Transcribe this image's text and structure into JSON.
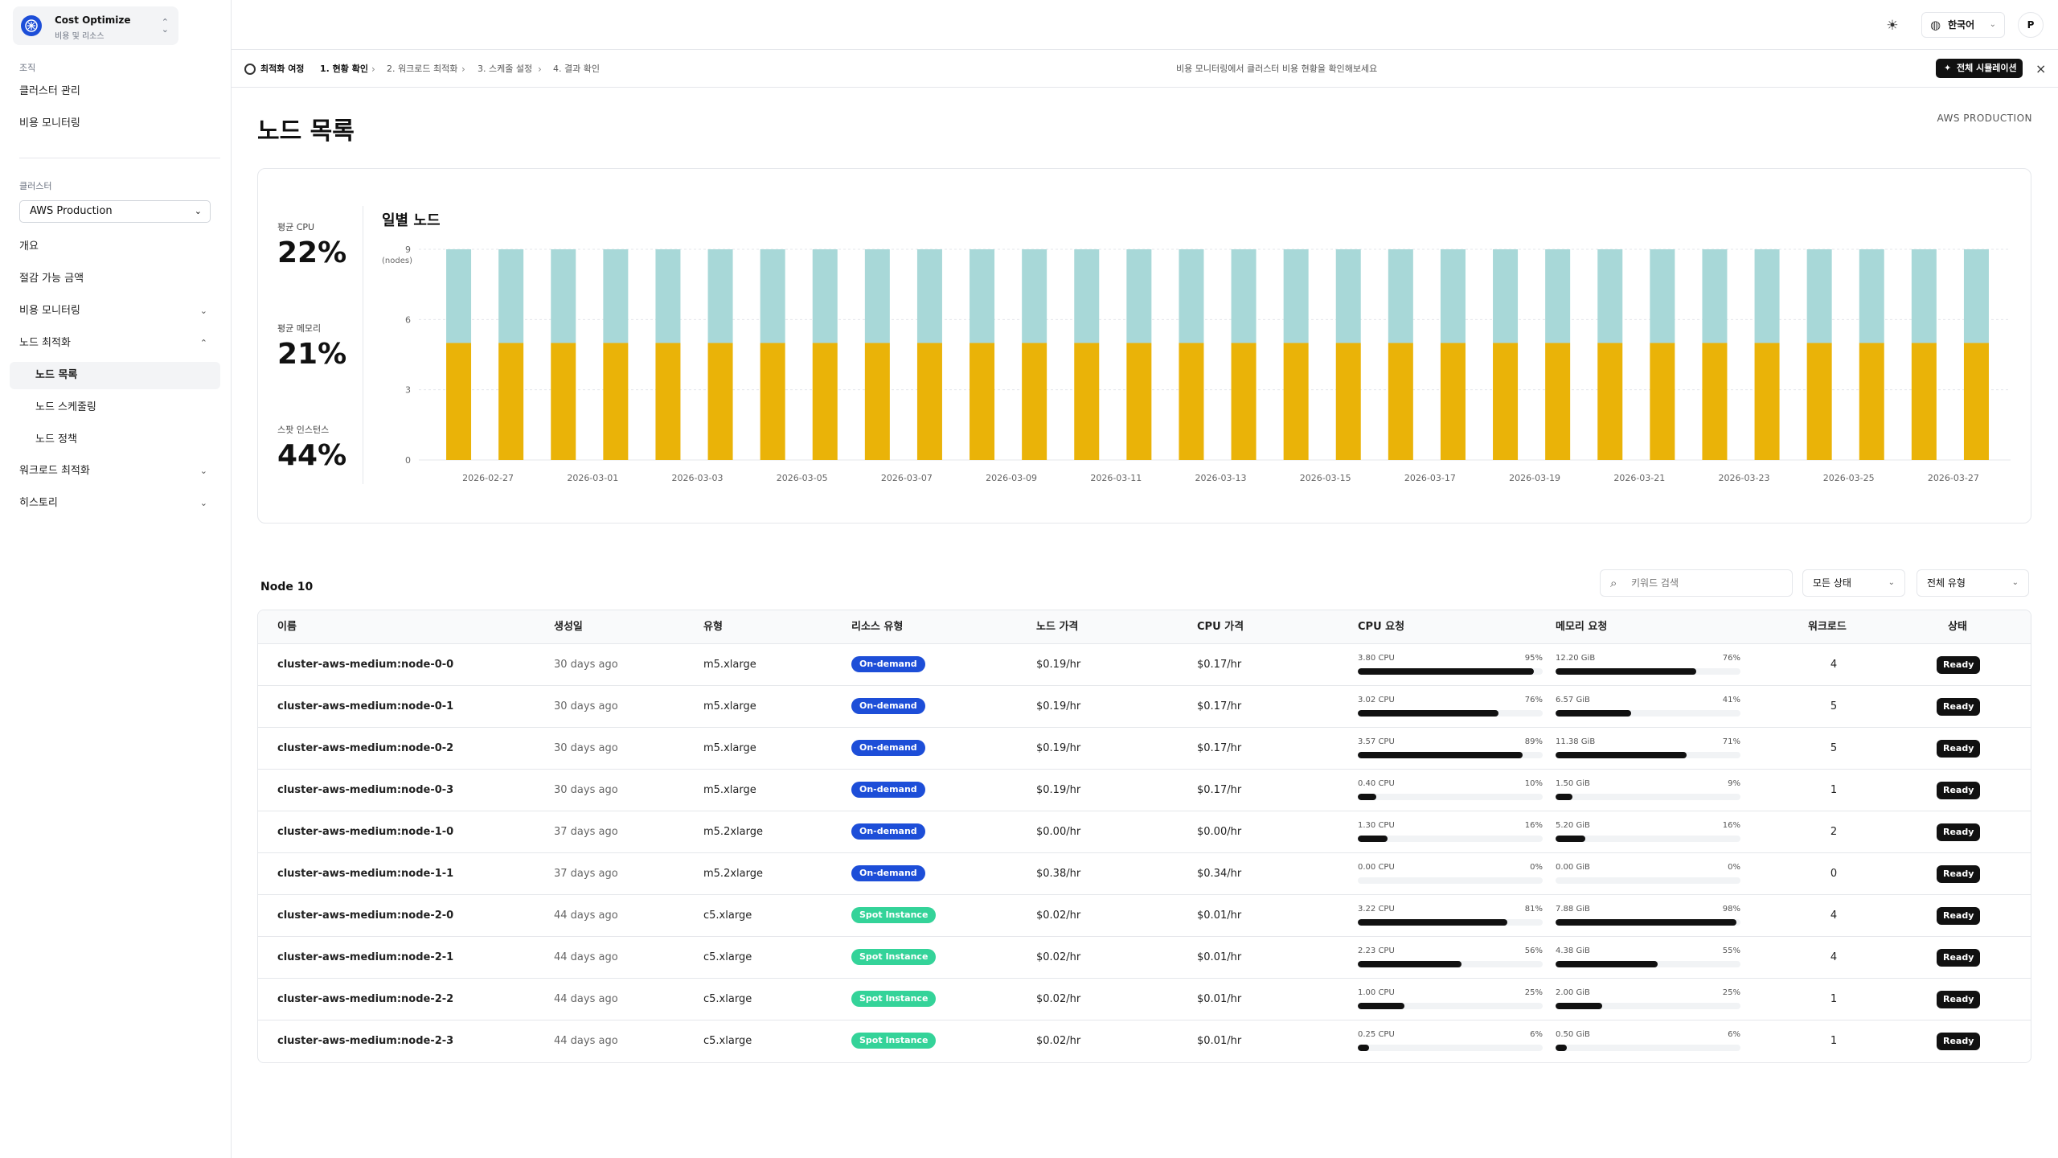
{
  "org": {
    "name": "Cost Optimize",
    "sub": "비용 및 리소스"
  },
  "sidebar": {
    "org_label": "조직",
    "org_items": [
      "클러스터 관리",
      "비용 모니터링"
    ],
    "cluster_label": "클러스터",
    "cluster_selected": "AWS Production",
    "nav": [
      {
        "label": "개요"
      },
      {
        "label": "절감 가능 금액"
      },
      {
        "label": "비용 모니터링",
        "chevron": "down"
      },
      {
        "label": "노드 최적화",
        "chevron": "up"
      }
    ],
    "sub_nav": [
      {
        "label": "노드 목록",
        "active": true
      },
      {
        "label": "노드 스케줄링"
      },
      {
        "label": "노드 정책"
      }
    ],
    "nav_after": [
      {
        "label": "워크로드 최적화",
        "chevron": "down"
      },
      {
        "label": "히스토리",
        "chevron": "down"
      }
    ]
  },
  "header": {
    "language": "한국어",
    "avatar": "P"
  },
  "journey": {
    "title": "최적화 여정",
    "steps": [
      "1. 현황 확인",
      "2. 워크로드 최적화",
      "3. 스케줄 설정",
      "4. 결과 확인"
    ],
    "current_step": 0,
    "message": "비용 모니터링에서 클러스터 비용 현황을 확인해보세요",
    "sim_button": "전체 시뮬레이션"
  },
  "page": {
    "title": "노드 목록",
    "cluster": "AWS PRODUCTION"
  },
  "kpis": [
    {
      "label": "평균 CPU",
      "value": "22%"
    },
    {
      "label": "평균 메모리",
      "value": "21%"
    },
    {
      "label": "스팟 인스턴스",
      "value": "44%"
    }
  ],
  "chart_data": {
    "type": "bar",
    "stacked": true,
    "title": "일별 노드",
    "ylabel": "(nodes)",
    "ylim": [
      0,
      9
    ],
    "yticks": [
      0,
      3,
      6,
      9
    ],
    "dates": [
      "2026-02-26",
      "2026-02-27",
      "2026-02-28",
      "2026-03-01",
      "2026-03-02",
      "2026-03-03",
      "2026-03-04",
      "2026-03-05",
      "2026-03-06",
      "2026-03-07",
      "2026-03-08",
      "2026-03-09",
      "2026-03-10",
      "2026-03-11",
      "2026-03-12",
      "2026-03-13",
      "2026-03-14",
      "2026-03-15",
      "2026-03-16",
      "2026-03-17",
      "2026-03-18",
      "2026-03-19",
      "2026-03-20",
      "2026-03-21",
      "2026-03-22",
      "2026-03-23",
      "2026-03-24",
      "2026-03-25",
      "2026-03-26",
      "2026-03-27"
    ],
    "xtick_labels": [
      "2026-02-27",
      "2026-03-01",
      "2026-03-03",
      "2026-03-05",
      "2026-03-07",
      "2026-03-09",
      "2026-03-11",
      "2026-03-13",
      "2026-03-15",
      "2026-03-17",
      "2026-03-19",
      "2026-03-21",
      "2026-03-23",
      "2026-03-25",
      "2026-03-27"
    ],
    "series": [
      {
        "values": [
          5,
          5,
          5,
          5,
          5,
          5,
          5,
          5,
          5,
          5,
          5,
          5,
          5,
          5,
          5,
          5,
          5,
          5,
          5,
          5,
          5,
          5,
          5,
          5,
          5,
          5,
          5,
          5,
          5,
          5
        ],
        "color": "#eab308"
      },
      {
        "values": [
          4,
          4,
          4,
          4,
          4,
          4,
          4,
          4,
          4,
          4,
          4,
          4,
          4,
          4,
          4,
          4,
          4,
          4,
          4,
          4,
          4,
          4,
          4,
          4,
          4,
          4,
          4,
          4,
          4,
          4
        ],
        "color": "#a8d8d8"
      }
    ]
  },
  "table": {
    "title": "Node 10",
    "search_placeholder": "키워드 검색",
    "status_filter": "모든 상태",
    "type_filter": "전체 유형",
    "columns": [
      "이름",
      "생성일",
      "유형",
      "리소스 유형",
      "노드 가격",
      "CPU 가격",
      "CPU 요청",
      "메모리 요청",
      "워크로드",
      "상태"
    ],
    "rows": [
      {
        "name": "cluster-aws-medium:node-0-0",
        "created": "30 days ago",
        "type": "m5.xlarge",
        "resource": "On-demand",
        "node_price": "$0.19/hr",
        "cpu_price": "$0.17/hr",
        "cpu": "3.80 CPU",
        "cpu_pct": "95%",
        "cpu_frac": 0.95,
        "mem": "12.20 GiB",
        "mem_pct": "76%",
        "mem_frac": 0.76,
        "workloads": "4",
        "status": "Ready"
      },
      {
        "name": "cluster-aws-medium:node-0-1",
        "created": "30 days ago",
        "type": "m5.xlarge",
        "resource": "On-demand",
        "node_price": "$0.19/hr",
        "cpu_price": "$0.17/hr",
        "cpu": "3.02 CPU",
        "cpu_pct": "76%",
        "cpu_frac": 0.76,
        "mem": "6.57 GiB",
        "mem_pct": "41%",
        "mem_frac": 0.41,
        "workloads": "5",
        "status": "Ready"
      },
      {
        "name": "cluster-aws-medium:node-0-2",
        "created": "30 days ago",
        "type": "m5.xlarge",
        "resource": "On-demand",
        "node_price": "$0.19/hr",
        "cpu_price": "$0.17/hr",
        "cpu": "3.57 CPU",
        "cpu_pct": "89%",
        "cpu_frac": 0.89,
        "mem": "11.38 GiB",
        "mem_pct": "71%",
        "mem_frac": 0.71,
        "workloads": "5",
        "status": "Ready"
      },
      {
        "name": "cluster-aws-medium:node-0-3",
        "created": "30 days ago",
        "type": "m5.xlarge",
        "resource": "On-demand",
        "node_price": "$0.19/hr",
        "cpu_price": "$0.17/hr",
        "cpu": "0.40 CPU",
        "cpu_pct": "10%",
        "cpu_frac": 0.1,
        "mem": "1.50 GiB",
        "mem_pct": "9%",
        "mem_frac": 0.09,
        "workloads": "1",
        "status": "Ready"
      },
      {
        "name": "cluster-aws-medium:node-1-0",
        "created": "37 days ago",
        "type": "m5.2xlarge",
        "resource": "On-demand",
        "node_price": "$0.00/hr",
        "cpu_price": "$0.00/hr",
        "cpu": "1.30 CPU",
        "cpu_pct": "16%",
        "cpu_frac": 0.16,
        "mem": "5.20 GiB",
        "mem_pct": "16%",
        "mem_frac": 0.16,
        "workloads": "2",
        "status": "Ready"
      },
      {
        "name": "cluster-aws-medium:node-1-1",
        "created": "37 days ago",
        "type": "m5.2xlarge",
        "resource": "On-demand",
        "node_price": "$0.38/hr",
        "cpu_price": "$0.34/hr",
        "cpu": "0.00 CPU",
        "cpu_pct": "0%",
        "cpu_frac": 0.0,
        "mem": "0.00 GiB",
        "mem_pct": "0%",
        "mem_frac": 0.0,
        "workloads": "0",
        "status": "Ready"
      },
      {
        "name": "cluster-aws-medium:node-2-0",
        "created": "44 days ago",
        "type": "c5.xlarge",
        "resource": "Spot Instance",
        "node_price": "$0.02/hr",
        "cpu_price": "$0.01/hr",
        "cpu": "3.22 CPU",
        "cpu_pct": "81%",
        "cpu_frac": 0.81,
        "mem": "7.88 GiB",
        "mem_pct": "98%",
        "mem_frac": 0.98,
        "workloads": "4",
        "status": "Ready"
      },
      {
        "name": "cluster-aws-medium:node-2-1",
        "created": "44 days ago",
        "type": "c5.xlarge",
        "resource": "Spot Instance",
        "node_price": "$0.02/hr",
        "cpu_price": "$0.01/hr",
        "cpu": "2.23 CPU",
        "cpu_pct": "56%",
        "cpu_frac": 0.56,
        "mem": "4.38 GiB",
        "mem_pct": "55%",
        "mem_frac": 0.55,
        "workloads": "4",
        "status": "Ready"
      },
      {
        "name": "cluster-aws-medium:node-2-2",
        "created": "44 days ago",
        "type": "c5.xlarge",
        "resource": "Spot Instance",
        "node_price": "$0.02/hr",
        "cpu_price": "$0.01/hr",
        "cpu": "1.00 CPU",
        "cpu_pct": "25%",
        "cpu_frac": 0.25,
        "mem": "2.00 GiB",
        "mem_pct": "25%",
        "mem_frac": 0.25,
        "workloads": "1",
        "status": "Ready"
      },
      {
        "name": "cluster-aws-medium:node-2-3",
        "created": "44 days ago",
        "type": "c5.xlarge",
        "resource": "Spot Instance",
        "node_price": "$0.02/hr",
        "cpu_price": "$0.01/hr",
        "cpu": "0.25 CPU",
        "cpu_pct": "6%",
        "cpu_frac": 0.06,
        "mem": "0.50 GiB",
        "mem_pct": "6%",
        "mem_frac": 0.06,
        "workloads": "1",
        "status": "Ready"
      }
    ]
  }
}
